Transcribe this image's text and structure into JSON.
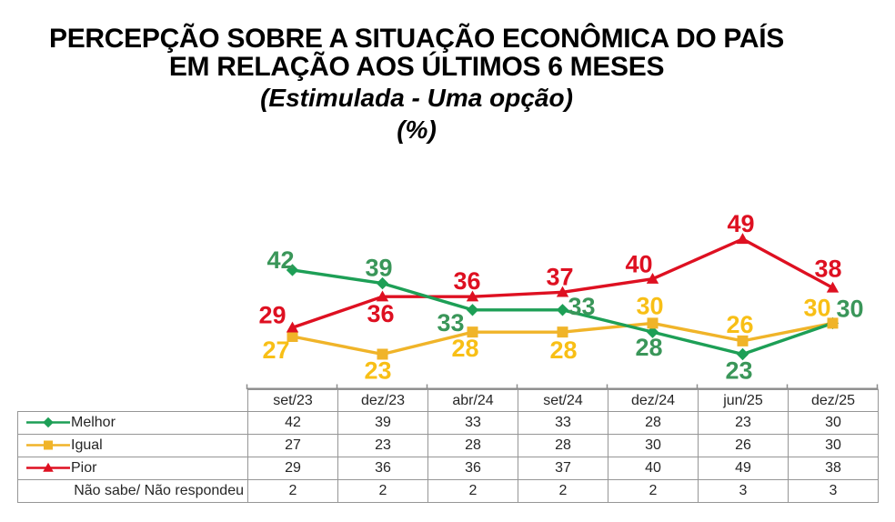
{
  "title": {
    "line1": "PERCEPÇÃO SOBRE A SITUAÇÃO ECONÔMICA DO PAÍS",
    "line2": "EM RELAÇÃO AOS ÚLTIMOS 6 MESES",
    "line3": "(Estimulada - Uma opção)",
    "line4": "(%)"
  },
  "chart_data": {
    "type": "line",
    "title": "Percepção sobre a situação econômica do país em relação aos últimos 6 meses (%)",
    "categories": [
      "set/23",
      "dez/23",
      "abr/24",
      "set/24",
      "dez/24",
      "jun/25",
      "dez/25"
    ],
    "series": [
      {
        "name": "Melhor",
        "marker": "diamond",
        "color": "#1D9F56",
        "label_color": "#3A9659",
        "values": [
          42,
          39,
          33,
          33,
          28,
          23,
          30
        ]
      },
      {
        "name": "Igual",
        "marker": "square",
        "color": "#F0B429",
        "label_color": "#F8BF16",
        "values": [
          27,
          23,
          28,
          28,
          30,
          26,
          30
        ]
      },
      {
        "name": "Pior",
        "marker": "triangle",
        "color": "#DE1021",
        "label_color": "#DE1021",
        "values": [
          29,
          36,
          36,
          37,
          40,
          49,
          38
        ]
      }
    ],
    "table_extra_row": {
      "name": "Não sabe/ Não respondeu",
      "values": [
        2,
        2,
        2,
        2,
        2,
        3,
        3
      ]
    },
    "xlabel": "",
    "ylabel": "",
    "ylim": [
      15,
      57
    ],
    "grid": false,
    "data_labels": true,
    "legend_position": "table-left",
    "axis_color": "#8C8C8C"
  },
  "colors": {
    "background": "#FFFFFF",
    "table_border": "#969696",
    "table_text": "#262626",
    "title_text": "#000000"
  }
}
